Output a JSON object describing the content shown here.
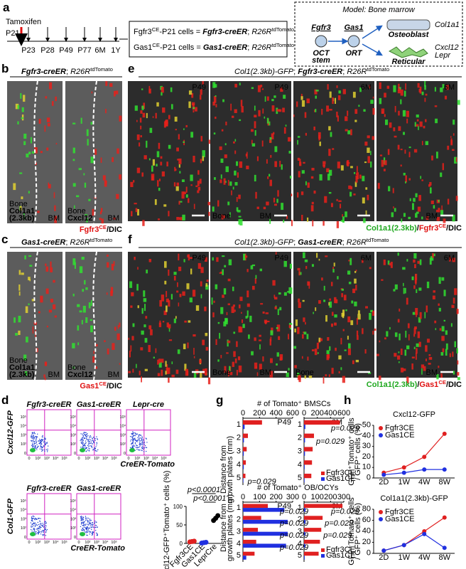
{
  "a": {
    "label": "a",
    "tamoxifen": "Tamoxifen",
    "p21": "P21",
    "timepoints": [
      "P23",
      "P28",
      "P49",
      "P77",
      "6M",
      "1Y"
    ],
    "line1": [
      {
        "text": "Fgfr3"
      },
      {
        "text": "CE",
        "style": "superscript"
      },
      {
        "text": "-P21 cells = "
      },
      {
        "text": "Fgfr3-creER",
        "style": "bold-italic"
      },
      {
        "text": "; "
      },
      {
        "text": "R26R",
        "style": "italic"
      },
      {
        "text": "tdTomato",
        "style": "superscript"
      }
    ],
    "line2": [
      {
        "text": "Gas1"
      },
      {
        "text": "CE",
        "style": "superscript"
      },
      {
        "text": "-P21 cells = "
      },
      {
        "text": "Gas1-creER",
        "style": "bold-italic"
      },
      {
        "text": "; "
      },
      {
        "text": "R26R",
        "style": "italic"
      },
      {
        "text": "tdTomato",
        "style": "superscript"
      }
    ],
    "model": {
      "title": "Model: Bone marrow",
      "fgfr3": "Fgfr3",
      "gas1": "Gas1",
      "oct": "OCT",
      "stem": "stem",
      "ort": "ORT",
      "osteoblast": "Osteoblast",
      "col1a1": "Col1a1",
      "reticular": "Reticular",
      "cxcl12": "Cxcl12",
      "lepr": "Lepr"
    }
  },
  "b": {
    "label": "b",
    "title": [
      {
        "text": "Fgfr3-creER",
        "style": "bold-italic"
      },
      {
        "text": "; "
      },
      {
        "text": "R26R",
        "style": "italic"
      },
      {
        "text": "tdTomato",
        "style": "superscript"
      }
    ],
    "images": [
      {
        "bottom_left": [
          {
            "text": "Bone",
            "color": "#ffffff"
          },
          {
            "text": "Col1a1",
            "color": "#33ee33"
          },
          {
            "text": "(2.3kb)",
            "color": "#33ee33"
          }
        ],
        "bottom_right": "BM"
      },
      {
        "bottom_left": [
          {
            "text": "Bone",
            "color": "#ffffff"
          },
          {
            "text": "Cxcl12",
            "color": "#33ee33"
          }
        ],
        "bottom_right": "BM"
      }
    ],
    "caption": [
      {
        "text": "Fgfr3",
        "color": "#e01010"
      },
      {
        "text": "CE",
        "color": "#e01010",
        "style": "superscript"
      },
      {
        "text": "/DIC",
        "color": "#000000"
      }
    ]
  },
  "c": {
    "label": "c",
    "title": [
      {
        "text": "Gas1-creER",
        "style": "bold-italic"
      },
      {
        "text": "; "
      },
      {
        "text": "R26R",
        "style": "italic"
      },
      {
        "text": "tdTomato",
        "style": "superscript"
      }
    ],
    "images": [
      {
        "bottom_left": [
          {
            "text": "Bone",
            "color": "#ffffff"
          },
          {
            "text": "Col1a1",
            "color": "#33ee33"
          },
          {
            "text": "(2.3kb)",
            "color": "#33ee33"
          }
        ],
        "bottom_right": "BM"
      },
      {
        "bottom_left": [
          {
            "text": "Bone",
            "color": "#ffffff"
          },
          {
            "text": "Cxcl12",
            "color": "#33ee33"
          }
        ],
        "bottom_right": "BM"
      }
    ],
    "caption": [
      {
        "text": "Gas1",
        "color": "#e01010"
      },
      {
        "text": "CE",
        "color": "#e01010",
        "style": "superscript"
      },
      {
        "text": "/DIC",
        "color": "#000000"
      }
    ]
  },
  "e": {
    "label": "e",
    "title": [
      {
        "text": "Col1(2.3kb)-GFP",
        "style": "italic"
      },
      {
        "text": "; "
      },
      {
        "text": "Fgfr3-creER",
        "style": "bold-italic"
      },
      {
        "text": "; "
      },
      {
        "text": "R26R",
        "style": "italic"
      },
      {
        "text": "tdTomato",
        "style": "superscript"
      }
    ],
    "images": [
      {
        "tag": "P49"
      },
      {
        "tag": "P49",
        "bottom_left": [
          {
            "text": "Bone",
            "color": "#ffffff"
          }
        ],
        "bottom_right": "BM"
      },
      {
        "tag": "6M"
      },
      {
        "tag": "6M",
        "bottom_right": "BM"
      }
    ],
    "caption": [
      {
        "text": "Col1a1(2.3kb)",
        "color": "#1fa81f"
      },
      {
        "text": "/",
        "color": "#000000"
      },
      {
        "text": "Fgfr3",
        "color": "#e01010"
      },
      {
        "text": "CE",
        "color": "#e01010",
        "style": "superscript"
      },
      {
        "text": "/DIC",
        "color": "#000000"
      }
    ]
  },
  "f": {
    "label": "f",
    "title": [
      {
        "text": "Col1(2.3kb)-GFP",
        "style": "italic"
      },
      {
        "text": "; "
      },
      {
        "text": "Gas1-creER",
        "style": "bold-italic"
      },
      {
        "text": "; "
      },
      {
        "text": "R26R",
        "style": "italic"
      },
      {
        "text": "tdTomato",
        "style": "superscript"
      }
    ],
    "images": [
      {
        "tag": "P49"
      },
      {
        "tag": "P49",
        "bottom_left": [
          {
            "text": "Bone",
            "color": "#ffffff"
          }
        ],
        "bottom_right": "BM"
      },
      {
        "tag": "6M",
        "bottom_left": [
          {
            "text": "Bone",
            "color": "#ffffff"
          }
        ]
      },
      {
        "tag": "6M",
        "bottom_right": "BM"
      }
    ],
    "caption": [
      {
        "text": "Col1a1(2.3kb)",
        "color": "#1fa81f"
      },
      {
        "text": "/",
        "color": "#000000"
      },
      {
        "text": "Gas1",
        "color": "#e01010"
      },
      {
        "text": "CE",
        "color": "#e01010",
        "style": "superscript"
      },
      {
        "text": "/DIC",
        "color": "#000000"
      }
    ]
  },
  "d": {
    "label": "d",
    "axis_ticks": [
      "0",
      "10²",
      "10³",
      "10⁴",
      "10⁵"
    ],
    "top": {
      "plots": [
        "Fgfr3-creER",
        "Gas1-creER",
        "Lepr-cre"
      ],
      "ylabel": "Cxcl12-GFP",
      "xlabel": "CreER-Tomato"
    },
    "bottom": {
      "plots": [
        "Fgfr3-creER",
        "Gas1-creER"
      ],
      "ylabel": "Col1-GFP",
      "xlabel": "CreER-Tomato"
    },
    "chart_data": {
      "type": "dot",
      "ylabel": "Cxcl12-GFP⁺Tomato⁺ cells (%)",
      "categories": [
        "Fgfr3CE",
        "Gas1CE",
        "LeprCre"
      ],
      "colors": [
        "#e02020",
        "#2030e0",
        "#000000"
      ],
      "values": [
        [
          4,
          5,
          6
        ],
        [
          1,
          2,
          3
        ],
        [
          62,
          68,
          75
        ]
      ],
      "ylim": [
        0,
        100
      ],
      "yticks": [
        0,
        50,
        100
      ],
      "annotations": [
        {
          "from": 0,
          "to": 2,
          "text": "p<0.0001"
        },
        {
          "from": 1,
          "to": 2,
          "text": "p<0.0001"
        }
      ]
    }
  },
  "g": {
    "label": "g",
    "ylabel": [
      "Distance from",
      "growth plates (mm)"
    ],
    "charts": [
      {
        "type": "hbar",
        "title": "# of Tomato⁺ BMSCs",
        "tag": "P49",
        "categories": [
          "1",
          "2",
          "3",
          "4",
          "5"
        ],
        "xlim": [
          0,
          600
        ],
        "xticks": [
          0,
          200,
          400,
          600
        ],
        "series": [
          {
            "name": "Fgfr3CE",
            "color": "#e02020",
            "values": [
              230,
              60,
              45,
              35,
              30
            ]
          },
          {
            "name": "Gas1CE",
            "color": "#2030e0",
            "values": [
              20,
              12,
              10,
              10,
              6
            ]
          }
        ],
        "annotations": [
          {
            "row": 4,
            "text": "p=0.029"
          }
        ]
      },
      {
        "type": "hbar",
        "tag": "6M",
        "categories": [
          "1",
          "2",
          "3",
          "4",
          "5"
        ],
        "xlim": [
          0,
          600
        ],
        "xticks": [
          0,
          200,
          400,
          600
        ],
        "series": [
          {
            "name": "Fgfr3CE",
            "color": "#e02020",
            "values": [
              540,
              150,
              130,
              120,
              110
            ]
          },
          {
            "name": "Gas1CE",
            "color": "#2030e0",
            "values": [
              20,
              15,
              14,
              10,
              8
            ]
          }
        ],
        "annotations": [
          {
            "row": 0,
            "text": "p=0.029"
          },
          {
            "row": 1,
            "text": "p=0.029"
          }
        ],
        "legend": true
      },
      {
        "type": "hbar",
        "title": "# of Tomato⁺ OB/OCYs",
        "tag": "P49",
        "categories": [
          "1",
          "2",
          "3",
          "4",
          "5"
        ],
        "xlim": [
          0,
          300
        ],
        "xticks": [
          0,
          100,
          200,
          300
        ],
        "series": [
          {
            "name": "Fgfr3CE",
            "color": "#e02020",
            "values": [
              150,
              110,
              90,
              80,
              70
            ]
          },
          {
            "name": "Gas1CE",
            "color": "#2030e0",
            "values": [
              250,
              270,
              270,
              260,
              20
            ]
          }
        ],
        "annotations": [
          {
            "row": 0,
            "text": "p=0.029"
          },
          {
            "row": 1,
            "text": "p=0.029"
          },
          {
            "row": 2,
            "text": "p=0.029"
          },
          {
            "row": 3,
            "text": "p=0.029"
          }
        ]
      },
      {
        "type": "hbar",
        "tag": "6M",
        "categories": [
          "1",
          "2",
          "3",
          "4",
          "5"
        ],
        "xlim": [
          0,
          300
        ],
        "xticks": [
          0,
          100,
          200,
          300
        ],
        "series": [
          {
            "name": "Fgfr3CE",
            "color": "#e02020",
            "values": [
              290,
              140,
              130,
              120,
              110
            ]
          },
          {
            "name": "Gas1CE",
            "color": "#2030e0",
            "values": [
              10,
              10,
              8,
              8,
              5
            ]
          }
        ],
        "annotations": [
          {
            "row": 0,
            "text": "p=0.029"
          },
          {
            "row": 1,
            "text": "p=0.029"
          },
          {
            "row": 2,
            "text": "p=0.029"
          }
        ],
        "legend": true
      }
    ]
  },
  "h": {
    "label": "h",
    "ylabel": [
      "GFP⁺Tomato⁺ cells",
      "/ GFP⁺ cells (%)"
    ],
    "charts": [
      {
        "type": "line",
        "title": "Cxcl12-GFP",
        "categories": [
          "2D",
          "1W",
          "4W",
          "8W"
        ],
        "ylim": [
          0,
          50
        ],
        "yticks": [
          0,
          10,
          20,
          30,
          40,
          50
        ],
        "series": [
          {
            "name": "Fgfr3CE",
            "color": "#e02020",
            "values": [
              5,
              10,
              20,
              42
            ]
          },
          {
            "name": "Gas1CE",
            "color": "#2030e0",
            "values": [
              3,
              5,
              8,
              8
            ]
          }
        ]
      },
      {
        "type": "line",
        "title": "Col1a1(2.3kb)-GFP",
        "categories": [
          "2D",
          "1W",
          "4W",
          "8W"
        ],
        "ylim": [
          0,
          80
        ],
        "yticks": [
          0,
          20,
          40,
          60,
          80
        ],
        "series": [
          {
            "name": "Fgfr3CE",
            "color": "#e02020",
            "values": [
              5,
              15,
              40,
              65
            ]
          },
          {
            "name": "Gas1CE",
            "color": "#2030e0",
            "values": [
              5,
              15,
              35,
              10
            ]
          }
        ]
      }
    ]
  }
}
